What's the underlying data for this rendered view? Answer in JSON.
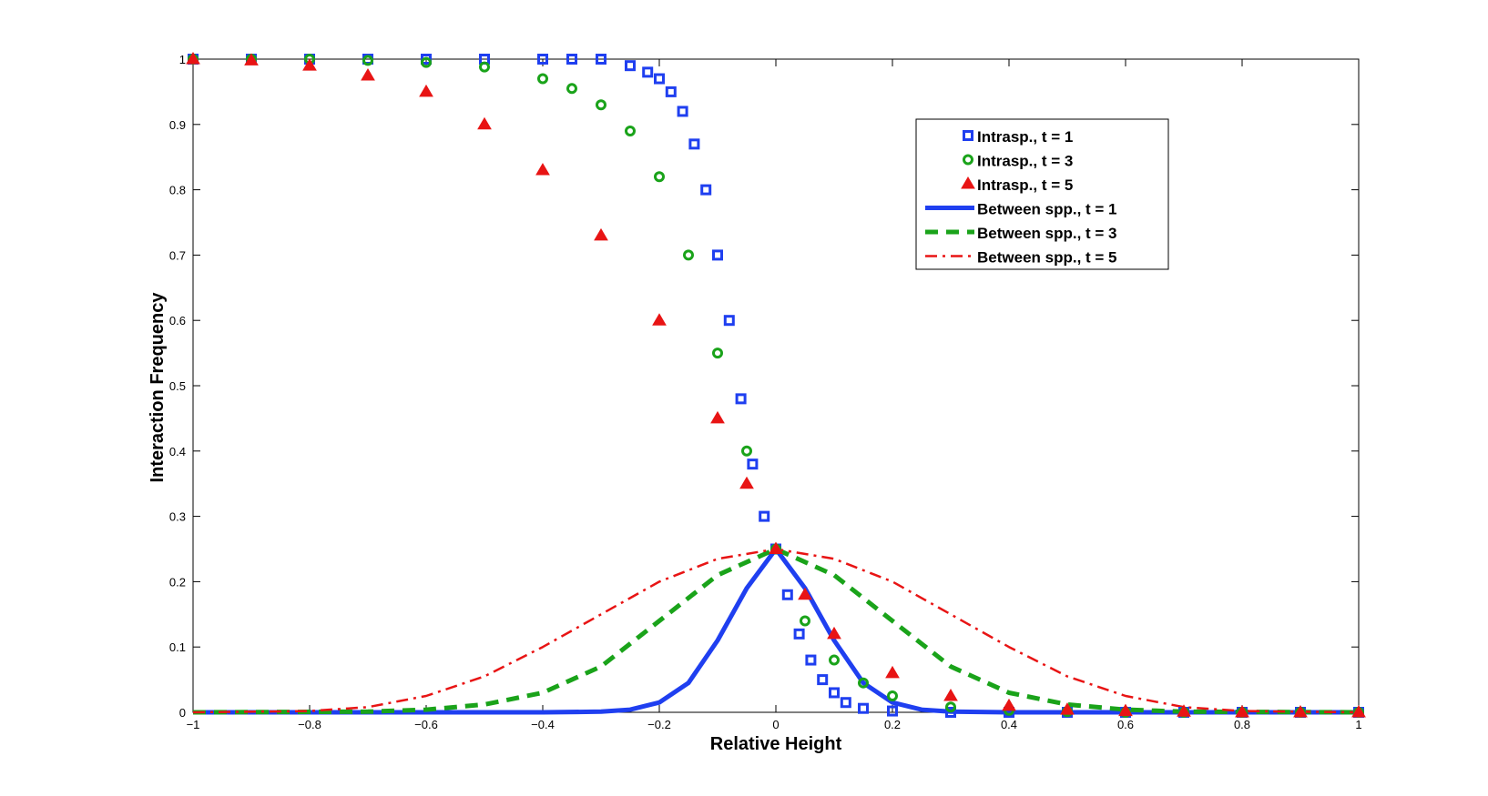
{
  "chart_data": {
    "type": "scatter",
    "title": "",
    "xlabel": "Relative Height",
    "ylabel": "Interaction Frequency",
    "xlim": [
      -1,
      1
    ],
    "ylim": [
      0,
      1
    ],
    "xticks": [
      -1,
      -0.8,
      -0.6,
      -0.4,
      -0.2,
      0,
      0.2,
      0.4,
      0.6,
      0.8,
      1
    ],
    "xtick_labels": [
      "−1",
      "−0.8",
      "−0.6",
      "−0.4",
      "−0.2",
      "0",
      "0.2",
      "0.4",
      "0.6",
      "0.8",
      "1"
    ],
    "yticks": [
      0,
      0.1,
      0.2,
      0.3,
      0.4,
      0.5,
      0.6,
      0.7,
      0.8,
      0.9,
      1
    ],
    "ytick_labels": [
      "0",
      "0.1",
      "0.2",
      "0.3",
      "0.4",
      "0.5",
      "0.6",
      "0.7",
      "0.8",
      "0.9",
      "1"
    ],
    "grid": false,
    "legend_position": "top-right",
    "series": [
      {
        "name": "Intrasp., t = 1",
        "kind": "markers",
        "marker": "square",
        "color": "#1f3ff0",
        "x": [
          -1.0,
          -0.9,
          -0.8,
          -0.7,
          -0.6,
          -0.5,
          -0.4,
          -0.35,
          -0.3,
          -0.25,
          -0.22,
          -0.2,
          -0.18,
          -0.16,
          -0.14,
          -0.12,
          -0.1,
          -0.08,
          -0.06,
          -0.04,
          -0.02,
          0.0,
          0.02,
          0.04,
          0.06,
          0.08,
          0.1,
          0.12,
          0.15,
          0.2,
          0.3,
          0.4,
          0.5,
          0.6,
          0.7,
          0.8,
          0.9,
          1.0
        ],
        "y": [
          1.0,
          1.0,
          1.0,
          1.0,
          1.0,
          1.0,
          1.0,
          1.0,
          1.0,
          0.99,
          0.98,
          0.97,
          0.95,
          0.92,
          0.87,
          0.8,
          0.7,
          0.6,
          0.48,
          0.38,
          0.3,
          0.25,
          0.18,
          0.12,
          0.08,
          0.05,
          0.03,
          0.015,
          0.006,
          0.002,
          0.0,
          0.0,
          0.0,
          0.0,
          0.0,
          0.0,
          0.0,
          0.0
        ]
      },
      {
        "name": "Intrasp., t = 3",
        "kind": "markers",
        "marker": "circle",
        "color": "#1aa31a",
        "x": [
          -1.0,
          -0.9,
          -0.8,
          -0.7,
          -0.6,
          -0.5,
          -0.4,
          -0.35,
          -0.3,
          -0.25,
          -0.2,
          -0.15,
          -0.1,
          -0.05,
          0.0,
          0.05,
          0.1,
          0.15,
          0.2,
          0.3,
          0.4,
          0.5,
          0.6,
          0.7,
          0.8,
          0.9,
          1.0
        ],
        "y": [
          1.0,
          1.0,
          1.0,
          0.998,
          0.995,
          0.988,
          0.97,
          0.955,
          0.93,
          0.89,
          0.82,
          0.7,
          0.55,
          0.4,
          0.25,
          0.14,
          0.08,
          0.045,
          0.025,
          0.008,
          0.003,
          0.001,
          0.0,
          0.0,
          0.0,
          0.0,
          0.0
        ]
      },
      {
        "name": "Intrasp., t = 5",
        "kind": "markers",
        "marker": "triangle",
        "color": "#e81414",
        "x": [
          -1.0,
          -0.9,
          -0.8,
          -0.7,
          -0.6,
          -0.5,
          -0.4,
          -0.3,
          -0.2,
          -0.1,
          -0.05,
          0.0,
          0.05,
          0.1,
          0.2,
          0.3,
          0.4,
          0.5,
          0.6,
          0.7,
          0.8,
          0.9,
          1.0
        ],
        "y": [
          1.0,
          0.998,
          0.99,
          0.975,
          0.95,
          0.9,
          0.83,
          0.73,
          0.6,
          0.45,
          0.35,
          0.25,
          0.18,
          0.12,
          0.06,
          0.025,
          0.01,
          0.004,
          0.002,
          0.001,
          0.0,
          0.0,
          0.0
        ]
      },
      {
        "name": "Between spp., t = 1",
        "kind": "line",
        "dash": "solid",
        "color": "#1f3ff0",
        "x": [
          -1.0,
          -0.4,
          -0.3,
          -0.25,
          -0.2,
          -0.15,
          -0.1,
          -0.05,
          0.0,
          0.05,
          0.1,
          0.15,
          0.2,
          0.25,
          0.3,
          0.4,
          1.0
        ],
        "y": [
          0.0,
          0.0,
          0.001,
          0.004,
          0.015,
          0.045,
          0.11,
          0.19,
          0.25,
          0.19,
          0.11,
          0.045,
          0.015,
          0.004,
          0.001,
          0.0,
          0.0
        ]
      },
      {
        "name": "Between spp., t = 3",
        "kind": "line",
        "dash": "dashed",
        "color": "#1aa31a",
        "x": [
          -1.0,
          -0.7,
          -0.6,
          -0.5,
          -0.4,
          -0.3,
          -0.2,
          -0.1,
          0.0,
          0.1,
          0.2,
          0.3,
          0.4,
          0.5,
          0.6,
          0.7,
          1.0
        ],
        "y": [
          0.0,
          0.001,
          0.004,
          0.012,
          0.03,
          0.07,
          0.14,
          0.21,
          0.25,
          0.21,
          0.14,
          0.07,
          0.03,
          0.012,
          0.004,
          0.001,
          0.0
        ]
      },
      {
        "name": "Between spp., t = 5",
        "kind": "line",
        "dash": "dashdot",
        "color": "#e81414",
        "x": [
          -1.0,
          -0.8,
          -0.7,
          -0.6,
          -0.5,
          -0.4,
          -0.3,
          -0.2,
          -0.1,
          0.0,
          0.1,
          0.2,
          0.3,
          0.4,
          0.5,
          0.6,
          0.7,
          0.8,
          1.0
        ],
        "y": [
          0.0,
          0.002,
          0.008,
          0.025,
          0.055,
          0.1,
          0.15,
          0.2,
          0.235,
          0.25,
          0.235,
          0.2,
          0.15,
          0.1,
          0.055,
          0.025,
          0.008,
          0.002,
          0.0
        ]
      }
    ]
  }
}
